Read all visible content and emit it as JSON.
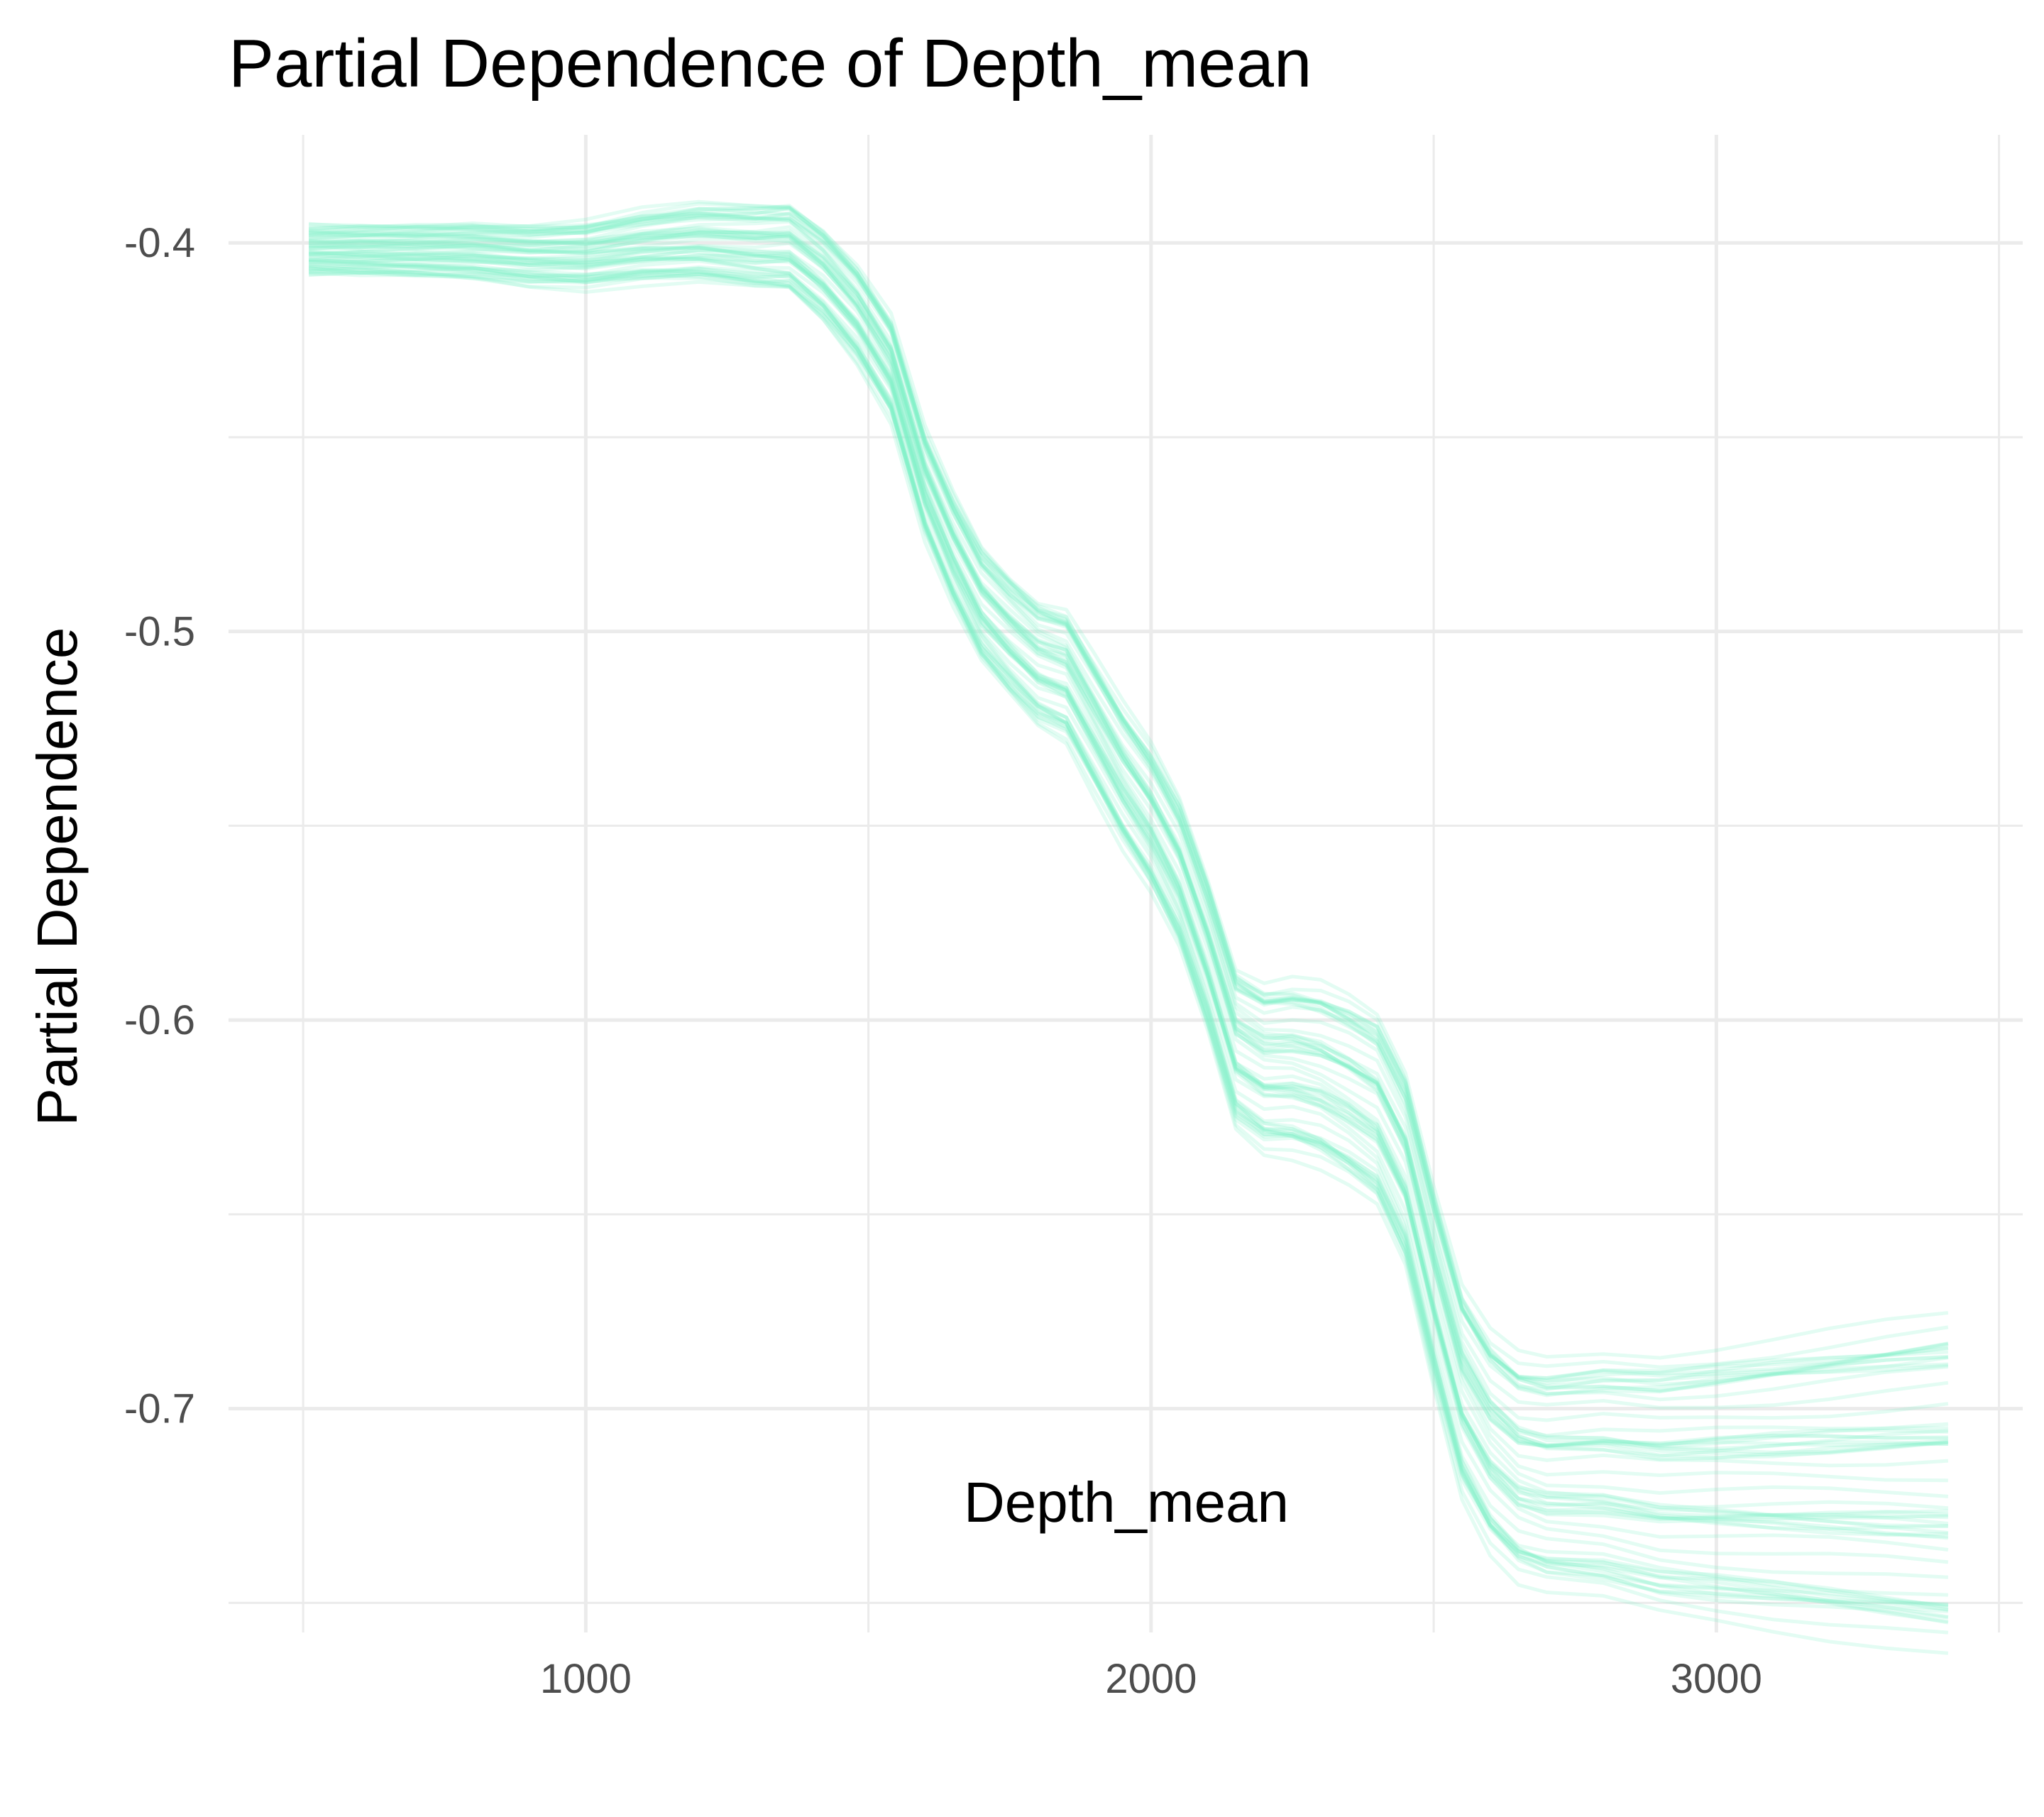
{
  "chart_data": {
    "type": "line",
    "title": "Partial Dependence of Depth_mean",
    "xlabel": "Depth_mean",
    "ylabel": "Partial Dependence",
    "xlim": [
      368,
      3542
    ],
    "ylim": [
      -0.7576,
      -0.3722
    ],
    "x_ticks": [
      1000,
      2000,
      3000
    ],
    "x_tick_labels": [
      "1000",
      "2000",
      "3000"
    ],
    "x_minor_ticks": [
      500,
      1500,
      2500,
      3500
    ],
    "y_ticks": [
      -0.4,
      -0.5,
      -0.6,
      -0.7
    ],
    "y_tick_labels": [
      "-0.4",
      "-0.5",
      "-0.6",
      "-0.7"
    ],
    "y_minor_ticks": [
      -0.45,
      -0.55,
      -0.65,
      -0.75
    ],
    "grid": true,
    "legend": "none",
    "line_color": "#7ff0c8",
    "line_opacity": 0.22,
    "ice_curve_count": 60,
    "ice_curve_note": "bundle of overlapping individual curves; representative center curve below, spread applied per curve",
    "center_curve": {
      "x": [
        510,
        600,
        700,
        800,
        900,
        1000,
        1100,
        1200,
        1300,
        1360,
        1420,
        1480,
        1540,
        1600,
        1650,
        1700,
        1750,
        1800,
        1850,
        1900,
        1950,
        2000,
        2050,
        2100,
        2150,
        2200,
        2250,
        2300,
        2350,
        2400,
        2450,
        2500,
        2550,
        2600,
        2650,
        2700,
        2800,
        2900,
        3000,
        3100,
        3200,
        3300,
        3410
      ],
      "y": [
        -0.402,
        -0.402,
        -0.402,
        -0.402,
        -0.403,
        -0.403,
        -0.401,
        -0.4,
        -0.401,
        -0.401,
        -0.408,
        -0.418,
        -0.432,
        -0.462,
        -0.479,
        -0.493,
        -0.501,
        -0.508,
        -0.511,
        -0.524,
        -0.537,
        -0.548,
        -0.562,
        -0.583,
        -0.607,
        -0.612,
        -0.612,
        -0.614,
        -0.618,
        -0.623,
        -0.638,
        -0.668,
        -0.695,
        -0.708,
        -0.715,
        -0.717,
        -0.717,
        -0.719,
        -0.719,
        -0.719,
        -0.719,
        -0.719,
        -0.719
      ]
    },
    "spread_left": 0.008,
    "spread_right": 0.056
  }
}
